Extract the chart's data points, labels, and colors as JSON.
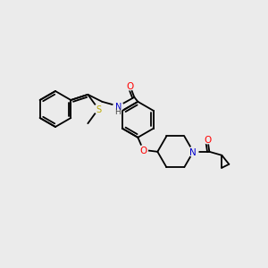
{
  "background_color": "#ebebeb",
  "atom_colors": {
    "C": "#000000",
    "N": "#0000cc",
    "O": "#ff0000",
    "S": "#bbaa00",
    "H": "#444444"
  },
  "figsize": [
    3.0,
    3.0
  ],
  "dpi": 100
}
